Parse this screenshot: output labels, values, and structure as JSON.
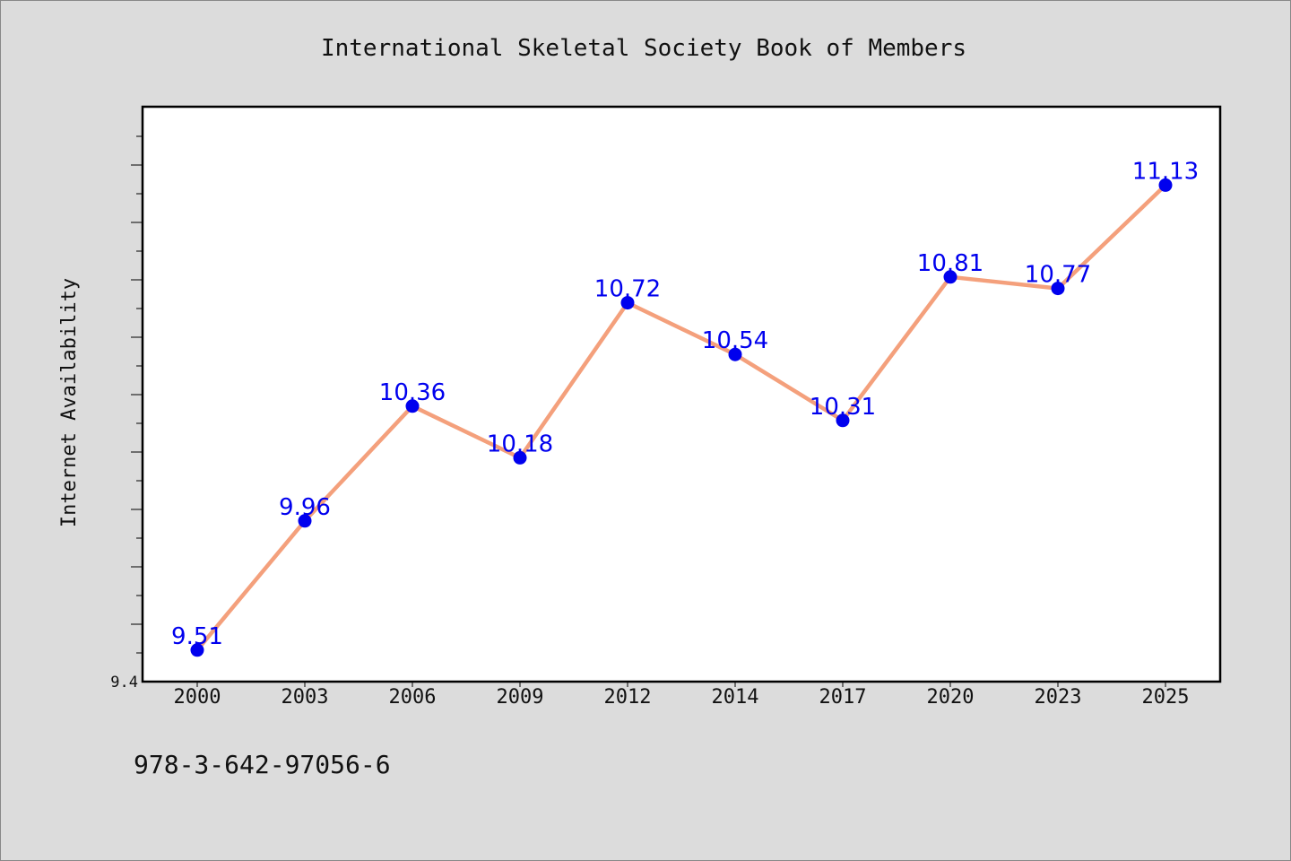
{
  "chart_data": {
    "type": "line",
    "title": "International Skeletal Society Book of Members",
    "xlabel": "",
    "ylabel": "Internet Availability",
    "categories": [
      "2000",
      "2003",
      "2006",
      "2009",
      "2012",
      "2014",
      "2017",
      "2020",
      "2023",
      "2025"
    ],
    "series": [
      {
        "values": [
          9.51,
          9.96,
          10.36,
          10.18,
          10.72,
          10.54,
          10.31,
          10.81,
          10.77,
          11.13
        ]
      }
    ],
    "data_labels": [
      "9.51",
      "9.96",
      "10.36",
      "10.18",
      "10.72",
      "10.54",
      "10.31",
      "10.81",
      "10.77",
      "11.13"
    ],
    "y_tick_labels": [
      "9.4"
    ],
    "ylim": [
      9.4,
      11.4
    ],
    "grid": false,
    "legend": "none",
    "colors": {
      "line": "#f4a07c",
      "marker": "#0000ee",
      "data_label": "#0000ee",
      "axis": "#000000",
      "plot_background": "#ffffff",
      "page_background": "#dcdcdc"
    }
  },
  "footer": {
    "isbn": "978-3-642-97056-6"
  }
}
